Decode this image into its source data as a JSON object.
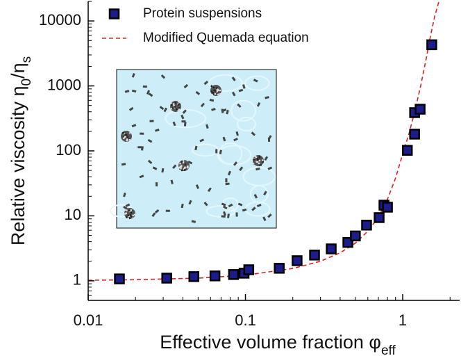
{
  "chart_data": {
    "type": "scatter",
    "xlabel": [
      "Effective volume fraction φ",
      "eff"
    ],
    "ylabel": [
      "Relative viscosity η",
      "0",
      "/η",
      "s"
    ],
    "xscale": "log",
    "yscale": "log",
    "xlim": [
      0.01,
      2.3
    ],
    "ylim": [
      0.5,
      20000
    ],
    "xticks": [
      0.01,
      0.1,
      1
    ],
    "yticks": [
      1,
      10,
      100,
      1000,
      10000
    ],
    "legend": "upper left",
    "series": [
      {
        "name": "Protein suspensions",
        "type": "scatter",
        "marker": "square",
        "color": "#1c1c8c",
        "x": [
          0.0158,
          0.0316,
          0.047,
          0.064,
          0.084,
          0.098,
          0.105,
          0.164,
          0.213,
          0.275,
          0.351,
          0.448,
          0.5,
          0.589,
          0.708,
          0.76,
          0.8,
          1.07,
          1.19,
          1.19,
          1.29,
          1.53
        ],
        "values": [
          1.07,
          1.1,
          1.16,
          1.19,
          1.25,
          1.31,
          1.48,
          1.56,
          2.04,
          2.49,
          3.1,
          3.9,
          4.9,
          7.2,
          9.4,
          14.6,
          13.6,
          102,
          181,
          388,
          438,
          4300
        ]
      },
      {
        "name": "Modified Quemada equation",
        "type": "line",
        "style": "dashed",
        "color": "#e8201c",
        "x": [
          0.01,
          0.02,
          0.05,
          0.1,
          0.2,
          0.3,
          0.4,
          0.5,
          0.6,
          0.7,
          0.8,
          0.9,
          1.0,
          1.1,
          1.2,
          1.3,
          1.4,
          1.5,
          1.6,
          1.7
        ],
        "values": [
          1.02,
          1.04,
          1.1,
          1.22,
          1.55,
          2.0,
          2.7,
          3.8,
          5.8,
          9.5,
          18,
          38,
          90,
          190,
          430,
          1000,
          2400,
          5800,
          12000,
          20000
        ]
      }
    ]
  }
}
